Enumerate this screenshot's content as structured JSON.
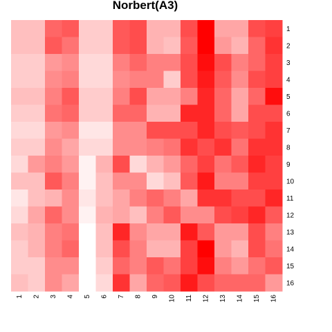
{
  "chart_data": {
    "type": "heatmap",
    "title": "Norbert(A3)",
    "xlabel": "",
    "ylabel": "",
    "x_categories": [
      "1",
      "2",
      "3",
      "4",
      "5",
      "6",
      "7",
      "8",
      "9",
      "10",
      "11",
      "12",
      "13",
      "14",
      "15",
      "16"
    ],
    "y_categories": [
      "1",
      "2",
      "3",
      "4",
      "5",
      "6",
      "7",
      "8",
      "9",
      "10",
      "11",
      "12",
      "13",
      "14",
      "15",
      "16"
    ],
    "color_low": "#ffffff",
    "color_high": "#ff0000",
    "value_range": [
      0,
      1
    ],
    "legend": "none",
    "grid": false,
    "values": [
      [
        0.25,
        0.25,
        0.6,
        0.65,
        0.2,
        0.2,
        0.65,
        0.7,
        0.3,
        0.3,
        0.7,
        1.0,
        0.35,
        0.35,
        0.7,
        0.75
      ],
      [
        0.25,
        0.25,
        0.65,
        0.55,
        0.2,
        0.2,
        0.65,
        0.7,
        0.3,
        0.25,
        0.65,
        1.0,
        0.4,
        0.3,
        0.6,
        0.8
      ],
      [
        0.2,
        0.2,
        0.4,
        0.45,
        0.15,
        0.15,
        0.5,
        0.6,
        0.5,
        0.5,
        0.7,
        0.95,
        0.7,
        0.5,
        0.6,
        0.75
      ],
      [
        0.2,
        0.2,
        0.45,
        0.5,
        0.15,
        0.15,
        0.45,
        0.5,
        0.5,
        0.2,
        0.7,
        0.9,
        0.65,
        0.45,
        0.7,
        0.75
      ],
      [
        0.25,
        0.25,
        0.5,
        0.65,
        0.2,
        0.2,
        0.5,
        0.7,
        0.35,
        0.35,
        0.5,
        0.85,
        0.6,
        0.35,
        0.6,
        0.95
      ],
      [
        0.2,
        0.2,
        0.55,
        0.6,
        0.2,
        0.2,
        0.6,
        0.6,
        0.3,
        0.3,
        0.85,
        0.85,
        0.6,
        0.35,
        0.7,
        0.7
      ],
      [
        0.15,
        0.15,
        0.4,
        0.45,
        0.1,
        0.1,
        0.45,
        0.45,
        0.7,
        0.7,
        0.7,
        0.85,
        0.7,
        0.65,
        0.7,
        0.8
      ],
      [
        0.2,
        0.2,
        0.45,
        0.35,
        0.15,
        0.15,
        0.45,
        0.45,
        0.5,
        0.55,
        0.8,
        0.7,
        0.8,
        0.55,
        0.8,
        0.8
      ],
      [
        0.15,
        0.4,
        0.5,
        0.4,
        0.05,
        0.3,
        0.7,
        0.15,
        0.3,
        0.4,
        0.6,
        0.75,
        0.55,
        0.65,
        0.85,
        0.75
      ],
      [
        0.25,
        0.25,
        0.65,
        0.5,
        0.05,
        0.25,
        0.45,
        0.45,
        0.15,
        0.25,
        0.65,
        0.9,
        0.5,
        0.5,
        0.75,
        0.75
      ],
      [
        0.1,
        0.25,
        0.3,
        0.45,
        0.1,
        0.25,
        0.35,
        0.5,
        0.6,
        0.5,
        0.35,
        0.8,
        0.8,
        0.7,
        0.7,
        0.85
      ],
      [
        0.15,
        0.35,
        0.6,
        0.45,
        0.05,
        0.3,
        0.35,
        0.25,
        0.5,
        0.65,
        0.45,
        0.45,
        0.7,
        0.75,
        0.85,
        0.65
      ],
      [
        0.25,
        0.3,
        0.5,
        0.55,
        0.0,
        0.25,
        0.85,
        0.45,
        0.35,
        0.35,
        0.9,
        0.65,
        0.4,
        0.4,
        0.7,
        0.5
      ],
      [
        0.2,
        0.3,
        0.5,
        0.6,
        0.0,
        0.25,
        0.7,
        0.5,
        0.3,
        0.3,
        0.75,
        1.0,
        0.4,
        0.3,
        0.7,
        0.55
      ],
      [
        0.2,
        0.2,
        0.45,
        0.45,
        0.0,
        0.2,
        0.6,
        0.5,
        0.65,
        0.55,
        0.75,
        0.95,
        0.5,
        0.4,
        0.55,
        0.65
      ],
      [
        0.25,
        0.2,
        0.45,
        0.35,
        0.0,
        0.15,
        0.8,
        0.35,
        0.6,
        0.65,
        0.9,
        0.7,
        0.6,
        0.6,
        0.6,
        0.4
      ]
    ]
  }
}
